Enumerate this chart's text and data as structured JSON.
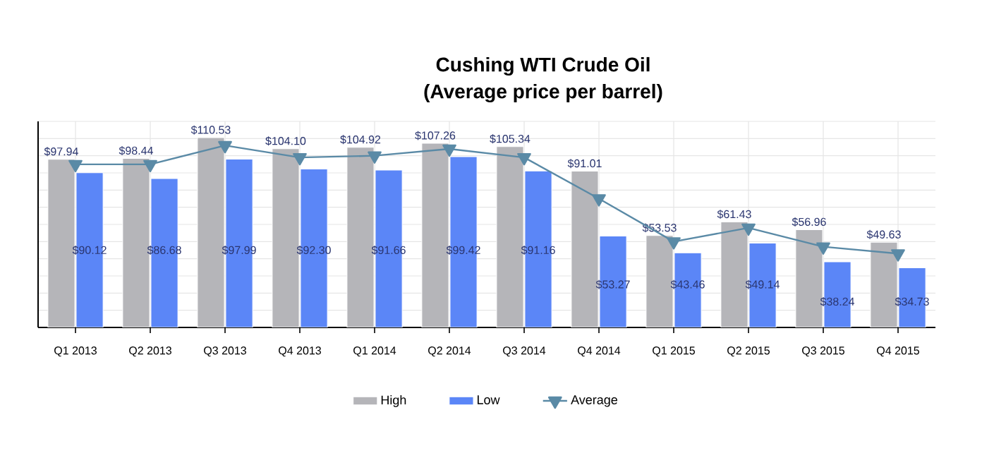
{
  "chart_data": {
    "type": "bar",
    "title": "Cushing WTI Crude Oil",
    "subtitle": "(Average price per barrel)",
    "categories": [
      "Q1 2013",
      "Q2 2013",
      "Q3 2013",
      "Q4 2013",
      "Q1 2014",
      "Q2 2014",
      "Q3 2014",
      "Q4 2014",
      "Q1 2015",
      "Q2 2015",
      "Q3 2015",
      "Q4 2015"
    ],
    "series": [
      {
        "name": "High",
        "color": "#b5b5b9",
        "values": [
          97.94,
          98.44,
          110.53,
          104.1,
          104.92,
          107.26,
          105.34,
          91.01,
          53.53,
          61.43,
          56.96,
          49.63
        ],
        "value_labels": [
          "$97.94",
          "$98.44",
          "$110.53",
          "$104.10",
          "$104.92",
          "$107.26",
          "$105.34",
          "$91.01",
          "$53.53",
          "$61.43",
          "$56.96",
          "$49.63"
        ]
      },
      {
        "name": "Low",
        "color": "#5b86f7",
        "values": [
          90.12,
          86.68,
          97.99,
          92.3,
          91.66,
          99.42,
          91.16,
          53.27,
          43.46,
          49.14,
          38.24,
          34.73
        ],
        "value_labels": [
          "$90.12",
          "$86.68",
          "$97.99",
          "$92.30",
          "$91.66",
          "$99.42",
          "$91.16",
          "$53.27",
          "$43.46",
          "$49.14",
          "$38.24",
          "$34.73"
        ]
      },
      {
        "name": "Average",
        "type": "line",
        "color": "#5a8aa6",
        "marker": "triangle",
        "values": [
          95,
          95,
          106,
          99,
          100,
          104,
          99,
          75,
          50,
          58,
          47,
          43
        ]
      }
    ],
    "ylim": [
      0,
      120
    ],
    "yticks": [
      {
        "value": 0,
        "label": null
      },
      {
        "value": 10,
        "label": null
      },
      {
        "value": 20,
        "label": null
      },
      {
        "value": 30,
        "label": null
      },
      {
        "value": 40,
        "label": null
      },
      {
        "value": 50,
        "label": null
      },
      {
        "value": 60,
        "label": null
      },
      {
        "value": 70,
        "label": null
      },
      {
        "value": 80,
        "label": null
      },
      {
        "value": 90,
        "label": null
      },
      {
        "value": 100,
        "label": null
      },
      {
        "value": 110,
        "label": null
      },
      {
        "value": 120,
        "label": null
      }
    ],
    "tick_labels": "x",
    "grid": true,
    "legend": "bottom"
  }
}
